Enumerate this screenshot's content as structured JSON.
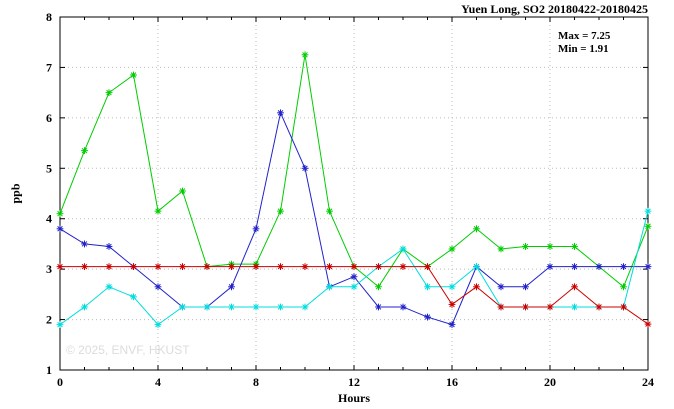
{
  "title": "Yuen Long, SO2 20180422-20180425",
  "annotation": {
    "max_label": "Max = 7.25",
    "min_label": "Min = 1.91"
  },
  "watermark": "© 2025, ENVF, HKUST",
  "chart_data": {
    "type": "line",
    "title": "Yuen Long, SO2 20180422-20180425",
    "xlabel": "Hours",
    "ylabel": "ppb",
    "xlim": [
      0,
      24
    ],
    "ylim": [
      1,
      8
    ],
    "xticks": [
      0,
      4,
      8,
      12,
      16,
      20,
      24
    ],
    "yticks": [
      1,
      2,
      3,
      4,
      5,
      6,
      7,
      8
    ],
    "minor_xtick_step": 1,
    "grid": true,
    "legend_position": "none",
    "marker": "asterisk",
    "max": 7.25,
    "min": 1.91,
    "x": [
      0,
      1,
      2,
      3,
      4,
      5,
      6,
      7,
      8,
      9,
      10,
      11,
      12,
      13,
      14,
      15,
      16,
      17,
      18,
      19,
      20,
      21,
      22,
      23,
      24
    ],
    "series": [
      {
        "name": "series-green",
        "color": "#00cc00",
        "values": [
          4.1,
          5.35,
          6.5,
          6.85,
          4.15,
          4.55,
          3.05,
          3.1,
          3.1,
          4.15,
          7.25,
          4.15,
          3.05,
          2.65,
          3.4,
          3.05,
          3.4,
          3.8,
          3.4,
          3.45,
          3.45,
          3.45,
          3.05,
          2.65,
          3.85
        ]
      },
      {
        "name": "series-blue",
        "color": "#2222cc",
        "values": [
          3.8,
          3.5,
          3.45,
          3.05,
          2.65,
          2.25,
          2.25,
          2.65,
          3.8,
          6.1,
          5.0,
          2.65,
          2.85,
          2.25,
          2.25,
          2.05,
          1.9,
          3.05,
          2.65,
          2.65,
          3.05,
          3.05,
          3.05,
          3.05,
          3.05
        ]
      },
      {
        "name": "series-cyan",
        "color": "#00dddd",
        "values": [
          1.9,
          2.25,
          2.65,
          2.45,
          1.9,
          2.25,
          2.25,
          2.25,
          2.25,
          2.25,
          2.25,
          2.65,
          2.65,
          3.05,
          3.4,
          2.65,
          2.65,
          3.05,
          2.25,
          2.25,
          2.25,
          2.25,
          2.25,
          2.25,
          4.15
        ]
      },
      {
        "name": "series-red",
        "color": "#cc0000",
        "values": [
          3.05,
          3.05,
          3.05,
          3.05,
          3.05,
          3.05,
          3.05,
          3.05,
          3.05,
          3.05,
          3.05,
          3.05,
          3.05,
          3.05,
          3.05,
          3.05,
          2.3,
          2.65,
          2.25,
          2.25,
          2.25,
          2.65,
          2.25,
          2.25,
          1.91
        ]
      }
    ],
    "colors": {
      "grid": "#bbbbbb",
      "axis": "#000000",
      "background": "#ffffff"
    }
  }
}
